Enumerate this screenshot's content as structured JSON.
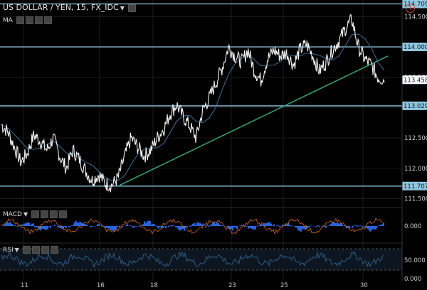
{
  "header": {
    "symbol_title": "US DOLLAR / YEN, 15, FX_IDC",
    "ma_label": "MA",
    "macd_label": "MACD",
    "rsi_label": "RSI"
  },
  "colors": {
    "background": "#000000",
    "hline": "#8fc7df",
    "trendline": "#3aa57c",
    "ma": "#3d6f9a",
    "macd_hist": "#2a63d9",
    "macd_signal": "#d06a2a",
    "rsi": "#2e5b84",
    "alert": "#d04a2a"
  },
  "price_axis": {
    "ticks": [
      "114.500",
      "114.000",
      "113.500",
      "113.000",
      "112.500",
      "112.000",
      "111.500"
    ],
    "tagged_levels": [
      {
        "label": "114.709",
        "value": 114.709,
        "kind": "hline"
      },
      {
        "label": "114.000",
        "value": 114.0,
        "kind": "hline"
      },
      {
        "label": "113.458",
        "value": 113.458,
        "kind": "last"
      },
      {
        "label": "113.029",
        "value": 113.029,
        "kind": "hline"
      },
      {
        "label": "111.707",
        "value": 111.707,
        "kind": "hline"
      }
    ]
  },
  "macd_axis": {
    "ticks": [
      "0.000"
    ]
  },
  "rsi_axis": {
    "ticks": [
      "50.000",
      "0.000"
    ],
    "bands": [
      70,
      30
    ]
  },
  "time_axis": {
    "ticks": [
      "11",
      "16",
      "18",
      "23",
      "25",
      "30"
    ]
  },
  "chart_data": {
    "type": "line",
    "symbol": "US DOLLAR / YEN, 15, FX_IDC",
    "x_ticks": [
      "11",
      "16",
      "18",
      "23",
      "25",
      "30"
    ],
    "ylim": [
      111.4,
      114.75
    ],
    "horizontal_lines": [
      114.709,
      114.0,
      113.029,
      111.707
    ],
    "trendline": {
      "from": [
        "16",
        111.72
      ],
      "to": [
        "30",
        113.85
      ]
    },
    "series": [
      {
        "values": [
          112.72,
          112.6,
          112.35,
          112.1,
          112.25,
          112.55,
          112.45,
          112.3,
          112.5,
          112.2,
          112.0,
          112.3,
          112.15,
          111.95,
          111.8,
          111.9,
          111.75,
          111.72,
          111.85,
          112.2,
          112.5,
          112.35,
          112.2,
          112.3,
          112.5,
          112.65,
          112.9,
          113.05,
          112.85,
          112.7,
          112.5,
          112.95,
          113.15,
          113.4,
          113.65,
          114.0,
          113.85,
          113.75,
          113.95,
          113.6,
          113.45,
          113.8,
          113.95,
          113.85,
          113.9,
          113.7,
          113.95,
          114.05,
          113.85,
          113.6,
          113.75,
          113.95,
          114.1,
          114.3,
          114.45,
          114.0,
          113.8,
          113.7,
          113.5,
          113.458
        ]
      }
    ]
  }
}
